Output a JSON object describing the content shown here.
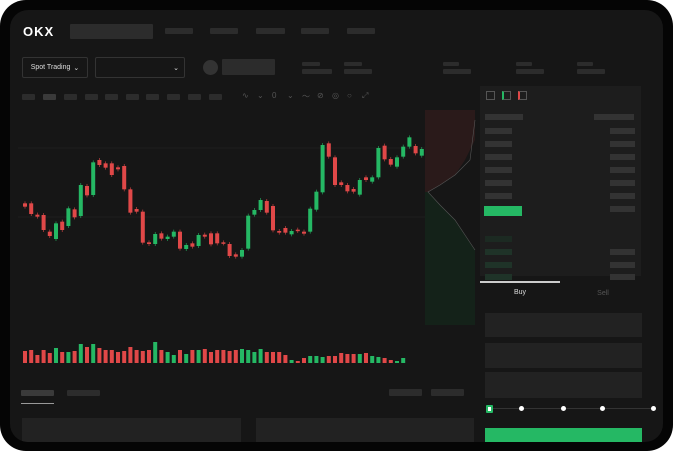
{
  "header": {
    "logo": "OKX",
    "nav_count": 5
  },
  "market_bar": {
    "mode_label": "Spot Trading",
    "pair_select_value": ""
  },
  "order_form": {
    "tabs": [
      {
        "label": "Buy",
        "active": true
      },
      {
        "label": "Sell",
        "active": false
      }
    ],
    "leverage_slider_value": 0
  },
  "colors": {
    "up": "#25b864",
    "down": "#e04848",
    "background": "#161616",
    "panel": "#1d1d1d"
  },
  "icons": [
    "chevron-down-icon",
    "avatar-icon",
    "orderbook-both-icon",
    "orderbook-bids-icon",
    "orderbook-asks-icon",
    "drawing-tools-icons"
  ],
  "candles": [
    [
      200,
      190
    ],
    [
      200,
      168
    ],
    [
      166,
      160
    ],
    [
      165,
      120
    ],
    [
      115,
      102
    ],
    [
      93,
      140
    ],
    [
      145,
      120
    ],
    [
      132,
      185
    ],
    [
      182,
      158
    ],
    [
      162,
      255
    ],
    [
      252,
      224
    ],
    [
      225,
      323
    ],
    [
      330,
      315
    ],
    [
      320,
      307
    ],
    [
      320,
      285
    ],
    [
      308,
      302
    ],
    [
      312,
      242
    ],
    [
      242,
      172
    ],
    [
      183,
      175
    ],
    [
      175,
      82
    ],
    [
      83,
      78
    ],
    [
      78,
      108
    ],
    [
      110,
      94
    ],
    [
      93,
      100
    ],
    [
      100,
      115
    ],
    [
      115,
      64
    ],
    [
      63,
      75
    ],
    [
      80,
      70
    ],
    [
      72,
      105
    ],
    [
      106,
      100
    ],
    [
      110,
      77
    ],
    [
      110,
      80
    ],
    [
      83,
      80
    ],
    [
      78,
      42
    ],
    [
      47,
      40
    ],
    [
      40,
      60
    ],
    [
      64,
      163
    ],
    [
      166,
      180
    ],
    [
      180,
      210
    ],
    [
      207,
      172
    ],
    [
      192,
      119
    ],
    [
      117,
      112
    ],
    [
      126,
      112
    ],
    [
      107,
      117
    ],
    [
      121,
      117
    ],
    [
      115,
      109
    ],
    [
      115,
      184
    ],
    [
      181,
      235
    ],
    [
      233,
      375
    ],
    [
      380,
      340
    ],
    [
      338,
      255
    ],
    [
      263,
      255
    ],
    [
      255,
      236
    ],
    [
      243,
      235
    ],
    [
      226,
      270
    ],
    [
      278,
      270
    ],
    [
      265,
      278
    ],
    [
      278,
      366
    ],
    [
      373,
      332
    ],
    [
      333,
      316
    ],
    [
      310,
      338
    ],
    [
      340,
      370
    ],
    [
      370,
      398
    ],
    [
      372,
      350
    ],
    [
      343,
      363
    ]
  ],
  "volumes": [
    12,
    13,
    8,
    13,
    10,
    15,
    11,
    11,
    12,
    19,
    16,
    19,
    15,
    13,
    13,
    11,
    12,
    16,
    13,
    12,
    13,
    21,
    13,
    11,
    8,
    13,
    9,
    13,
    13,
    14,
    11,
    13,
    13,
    12,
    13,
    14,
    13,
    11,
    14,
    11,
    11,
    11,
    8,
    3,
    2,
    5,
    7,
    7,
    6,
    7,
    7,
    10,
    9,
    9,
    9,
    10,
    7,
    6,
    5,
    3,
    2,
    5,
    0,
    0,
    0
  ]
}
